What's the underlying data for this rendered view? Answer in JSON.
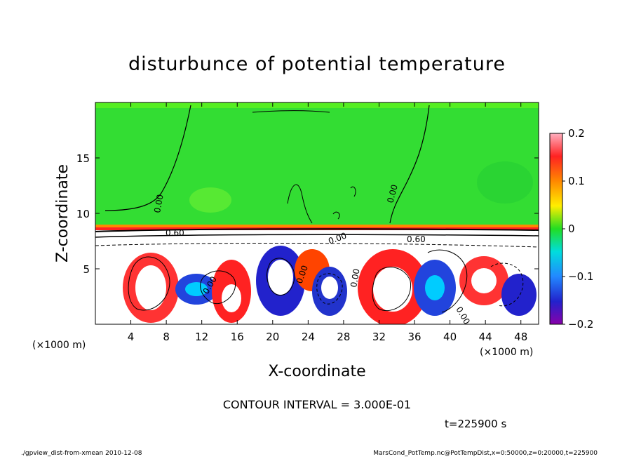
{
  "chart_data": {
    "type": "heatmap",
    "title": "disturbunce of potential temperature",
    "xlabel": "X-coordinate",
    "ylabel": "Z-coordinate",
    "x_unit": "(×1000 m)",
    "y_unit": "(×1000 m)",
    "xlim": [
      0,
      50
    ],
    "ylim": [
      0,
      20
    ],
    "x_ticks": [
      4,
      8,
      12,
      16,
      20,
      24,
      28,
      32,
      36,
      40,
      44,
      48
    ],
    "y_ticks": [
      5,
      10,
      15
    ],
    "colorbar": {
      "min": -0.2,
      "max": 0.2,
      "tick_labels": [
        "0.2",
        "0.1",
        "0",
        "−0.1",
        "−0.2"
      ],
      "tick_values": [
        0.2,
        0.1,
        0,
        -0.1,
        -0.2
      ]
    },
    "contour_labels": [
      "0.00",
      "0.00",
      "0.60",
      "0.00",
      "0.60",
      "0.00",
      "0.00",
      "0.00",
      "0.00"
    ],
    "contour_interval_text": "CONTOUR INTERVAL = 3.000E-01",
    "time_text": "t=225900 s",
    "colors": {
      "upper_layer": "#33dd33",
      "warm": "#ff2222",
      "cold": "#2222cc"
    }
  },
  "footer": {
    "left": "./gpview_dist-from-xmean   2010-12-08",
    "right": "MarsCond_PotTemp.nc@PotTempDist,x=0:50000,z=0:20000,t=225900"
  }
}
